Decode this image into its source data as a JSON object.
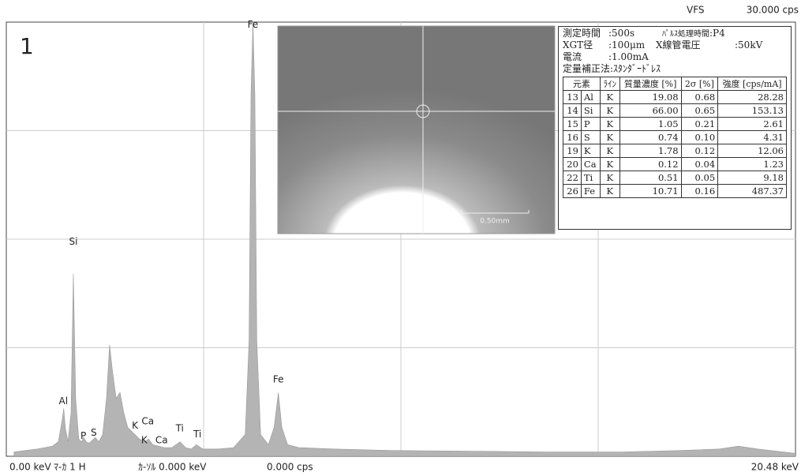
{
  "panel": "1",
  "chart_data": {
    "type": "area",
    "vfs": "VFS",
    "x": [
      0.2,
      0.5,
      0.8,
      1.0,
      1.2,
      1.35,
      1.45,
      1.49,
      1.53,
      1.6,
      1.68,
      1.74,
      1.8,
      1.88,
      1.95,
      2.01,
      2.07,
      2.15,
      2.31,
      2.4,
      2.5,
      2.6,
      2.68,
      2.75,
      2.85,
      2.95,
      3.05,
      3.15,
      3.3,
      3.45,
      3.6,
      3.69,
      3.8,
      3.95,
      4.1,
      4.3,
      4.51,
      4.65,
      4.8,
      4.93,
      5.1,
      5.5,
      5.9,
      6.2,
      6.3,
      6.35,
      6.4,
      6.45,
      6.5,
      6.6,
      6.8,
      6.95,
      7.06,
      7.15,
      7.3,
      7.6,
      8.5,
      10,
      12,
      14,
      16,
      17.5,
      18.5,
      19.0,
      19.5,
      20.48
    ],
    "values": [
      0.3,
      0.4,
      0.5,
      0.6,
      0.7,
      1.0,
      2.5,
      3.3,
      2.0,
      1.0,
      3.0,
      12.6,
      4.0,
      1.2,
      1.0,
      1.3,
      1.0,
      0.9,
      1.3,
      1.0,
      1.5,
      4.0,
      7.7,
      6.0,
      4.0,
      4.4,
      3.0,
      2.0,
      1.6,
      1.2,
      1.0,
      1.2,
      0.8,
      0.7,
      0.6,
      0.6,
      1.0,
      0.6,
      0.5,
      0.8,
      0.5,
      0.5,
      0.6,
      1.5,
      8,
      25,
      30,
      25,
      8,
      1.5,
      0.8,
      2.0,
      4.4,
      2.0,
      0.8,
      0.6,
      0.5,
      0.4,
      0.35,
      0.3,
      0.3,
      0.4,
      0.5,
      0.7,
      0.5,
      0.2
    ],
    "color": "#b4b4b4",
    "xlim": [
      0,
      20.48
    ],
    "xticks": [
      {
        "value": 0,
        "label": "0.00 keV"
      },
      {
        "value": 20.48,
        "label": "20.48 keV"
      }
    ],
    "xgrid": [
      5.12,
      10.24,
      15.36
    ],
    "ylim": [
      0,
      30
    ],
    "yticks": [
      {
        "value": 30,
        "label": "30.000 cps"
      }
    ],
    "ygrid": [
      7.5,
      15,
      22.5
    ],
    "annotations": [
      {
        "text": "Fe",
        "x": 6.4,
        "y": 29.8
      },
      {
        "text": "Si",
        "x": 1.74,
        "y": 14.8
      },
      {
        "text": "Al",
        "x": 1.48,
        "y": 3.8
      },
      {
        "text": "P",
        "x": 2.0,
        "y": 1.4
      },
      {
        "text": "S",
        "x": 2.27,
        "y": 1.6
      },
      {
        "text": "K",
        "x": 3.34,
        "y": 2.1
      },
      {
        "text": "Ca",
        "x": 3.67,
        "y": 2.4
      },
      {
        "text": "K",
        "x": 3.58,
        "y": 1.1
      },
      {
        "text": "Ca",
        "x": 4.03,
        "y": 1.1
      },
      {
        "text": "Ti",
        "x": 4.5,
        "y": 1.9
      },
      {
        "text": "Ti",
        "x": 4.96,
        "y": 1.5
      },
      {
        "text": "Fe",
        "x": 7.06,
        "y": 5.3
      }
    ]
  },
  "footer": {
    "marker": "ﾏ-ｶ 1 H",
    "cursor": "ｶ-ｿﾙ 0.000 keV",
    "cursor_cps": "0.000 cps"
  },
  "image": {
    "scale": "0.50mm"
  },
  "info": {
    "time_label": "測定時間",
    "time": ":500s",
    "pulse_label": "ﾊﾟﾙｽ処理時間",
    "pulse": ":P4",
    "xgt_label": "XGT径",
    "xgt": ":100μm",
    "volt_label": "X線管電圧",
    "volt": ":50kV",
    "current_label": "電流",
    "current": ":1.00mA",
    "method": "定量補正法:ｽﾀﾝﾀﾞｰﾄﾞﾚｽ"
  },
  "table": {
    "header": [
      "元素",
      "ﾗｲﾝ",
      "質量濃度 [%]",
      "2σ [%]",
      "強度 [cps/mA]"
    ],
    "rows": [
      [
        "13",
        "Al",
        "K",
        "19.08",
        "0.68",
        "28.28"
      ],
      [
        "14",
        "Si",
        "K",
        "66.00",
        "0.65",
        "153.13"
      ],
      [
        "15",
        "P",
        "K",
        "1.05",
        "0.21",
        "2.61"
      ],
      [
        "16",
        "S",
        "K",
        "0.74",
        "0.10",
        "4.31"
      ],
      [
        "19",
        "K",
        "K",
        "1.78",
        "0.12",
        "12.06"
      ],
      [
        "20",
        "Ca",
        "K",
        "0.12",
        "0.04",
        "1.23"
      ],
      [
        "22",
        "Ti",
        "K",
        "0.51",
        "0.05",
        "9.18"
      ],
      [
        "26",
        "Fe",
        "K",
        "10.71",
        "0.16",
        "487.37"
      ]
    ]
  }
}
